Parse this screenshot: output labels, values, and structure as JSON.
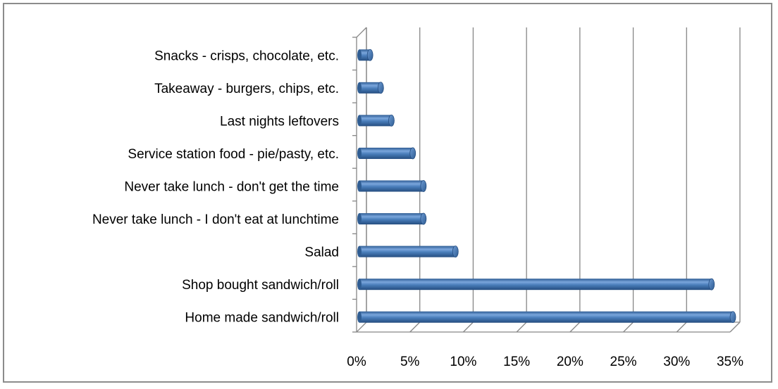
{
  "chart_data": {
    "type": "bar",
    "orientation": "horizontal",
    "style": "3d-cylinder",
    "title": "",
    "xlabel": "",
    "ylabel": "",
    "categories": [
      "Snacks - crisps, chocolate, etc.",
      "Takeaway - burgers, chips, etc.",
      "Last nights leftovers",
      "Service station food - pie/pasty, etc.",
      "Never take lunch - don't get the time",
      "Never take lunch - I don't eat at lunchtime",
      "Salad",
      "Shop bought sandwich/roll",
      "Home made sandwich/roll"
    ],
    "values": [
      1,
      2,
      3,
      5,
      6,
      6,
      9,
      33,
      35
    ],
    "xlim": [
      0,
      35
    ],
    "xticks": [
      "0%",
      "5%",
      "10%",
      "15%",
      "20%",
      "25%",
      "30%",
      "35%"
    ],
    "grid": true,
    "legend": "none",
    "colors": {
      "bar": "#4a7ebb",
      "grid": "#868686"
    }
  }
}
